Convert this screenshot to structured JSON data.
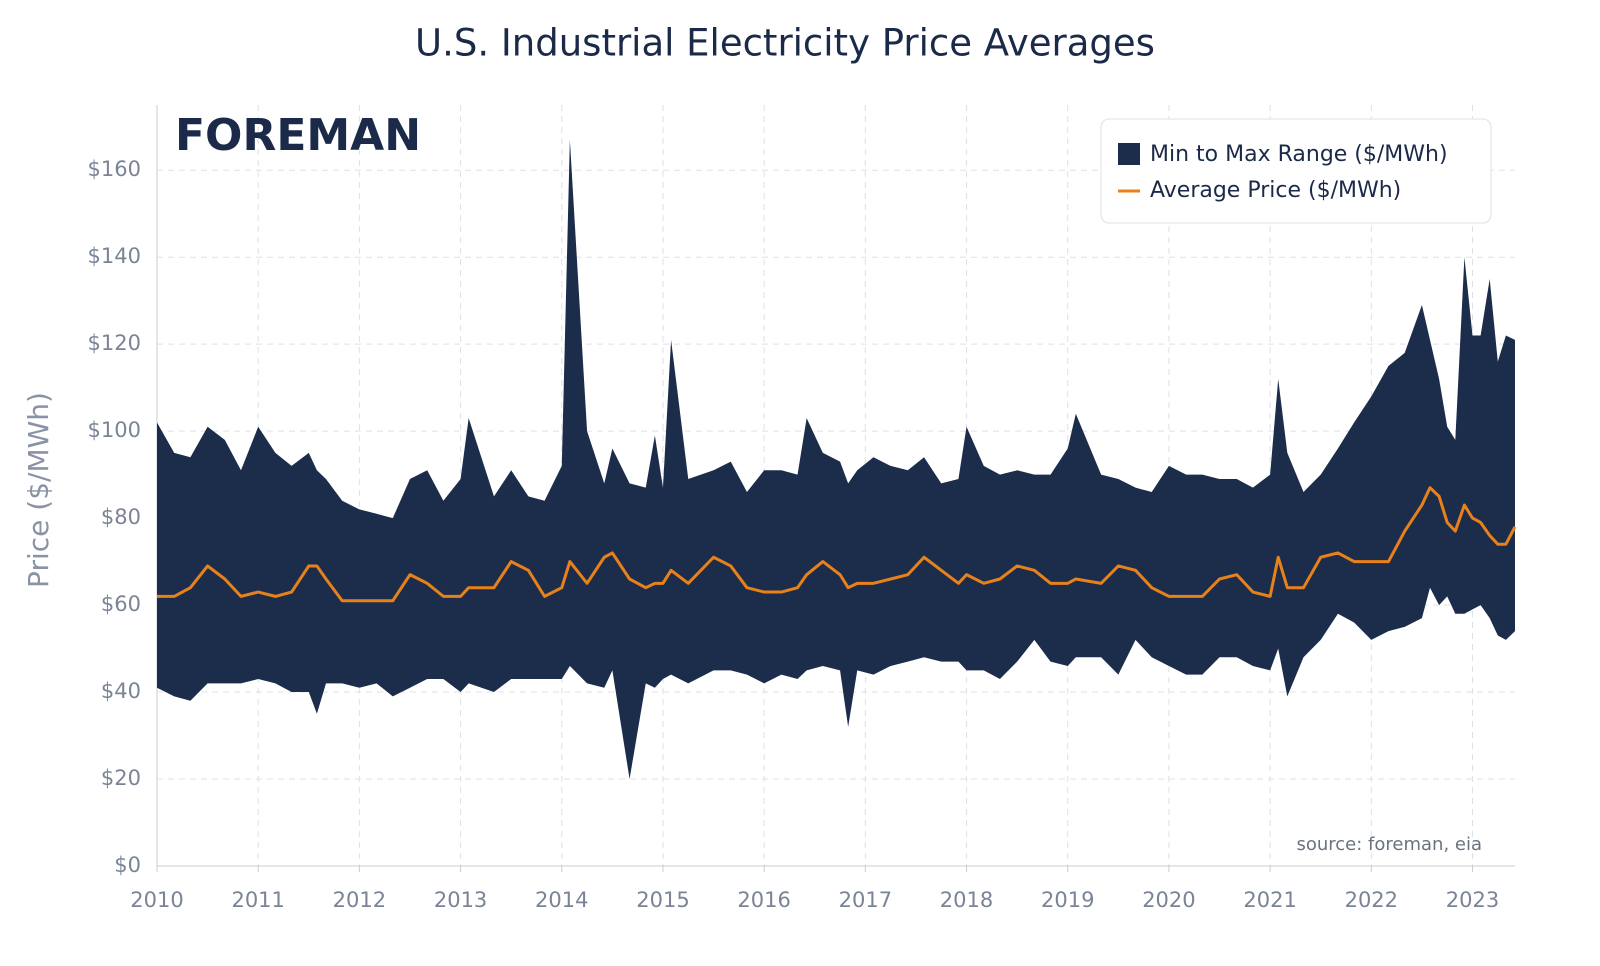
{
  "chart_data": {
    "type": "range-line",
    "title": "U.S. Industrial Electricity Price Averages",
    "brand": "FOREMAN",
    "source": "source: foreman, eia",
    "y_label": "Price ($/MWh)",
    "x": [
      2010.0,
      2010.17,
      2010.33,
      2010.5,
      2010.67,
      2010.83,
      2011.0,
      2011.17,
      2011.33,
      2011.5,
      2011.58,
      2011.67,
      2011.83,
      2012.0,
      2012.17,
      2012.33,
      2012.5,
      2012.67,
      2012.83,
      2013.0,
      2013.08,
      2013.33,
      2013.5,
      2013.67,
      2013.83,
      2014.0,
      2014.08,
      2014.25,
      2014.42,
      2014.5,
      2014.67,
      2014.83,
      2014.92,
      2015.0,
      2015.08,
      2015.25,
      2015.5,
      2015.67,
      2015.83,
      2016.0,
      2016.17,
      2016.33,
      2016.42,
      2016.58,
      2016.75,
      2016.83,
      2016.92,
      2017.08,
      2017.25,
      2017.42,
      2017.58,
      2017.75,
      2017.92,
      2018.0,
      2018.17,
      2018.33,
      2018.5,
      2018.67,
      2018.83,
      2019.0,
      2019.08,
      2019.33,
      2019.5,
      2019.67,
      2019.83,
      2020.0,
      2020.17,
      2020.33,
      2020.5,
      2020.67,
      2020.83,
      2021.0,
      2021.08,
      2021.17,
      2021.33,
      2021.5,
      2021.67,
      2021.83,
      2022.0,
      2022.17,
      2022.33,
      2022.5,
      2022.58,
      2022.67,
      2022.75,
      2022.83,
      2022.92,
      2023.0,
      2023.08,
      2023.17,
      2023.25,
      2023.33,
      2023.42
    ],
    "series": [
      {
        "name": "Min to Max Range ($/MWh)",
        "color": "#1b2d4b",
        "high": [
          102,
          95,
          94,
          101,
          98,
          91,
          101,
          95,
          92,
          95,
          91,
          89,
          84,
          82,
          81,
          80,
          89,
          91,
          84,
          89,
          103,
          85,
          91,
          85,
          84,
          92,
          167,
          100,
          88,
          96,
          88,
          87,
          99,
          87,
          121,
          89,
          91,
          93,
          86,
          91,
          91,
          90,
          103,
          95,
          93,
          88,
          91,
          94,
          92,
          91,
          94,
          88,
          89,
          101,
          92,
          90,
          91,
          90,
          90,
          96,
          104,
          90,
          89,
          87,
          86,
          92,
          90,
          90,
          89,
          89,
          87,
          90,
          112,
          95,
          86,
          90,
          96,
          102,
          108,
          115,
          118,
          129,
          121,
          112,
          101,
          98,
          140,
          122,
          122,
          135,
          116,
          122,
          121
        ],
        "low": [
          41,
          39,
          38,
          42,
          42,
          42,
          43,
          42,
          40,
          40,
          35,
          42,
          42,
          41,
          42,
          39,
          41,
          43,
          43,
          40,
          42,
          40,
          43,
          43,
          43,
          43,
          46,
          42,
          41,
          45,
          20,
          42,
          41,
          43,
          44,
          42,
          45,
          45,
          44,
          42,
          44,
          43,
          45,
          46,
          45,
          32,
          45,
          44,
          46,
          47,
          48,
          47,
          47,
          45,
          45,
          43,
          47,
          52,
          47,
          46,
          48,
          48,
          44,
          52,
          48,
          46,
          44,
          44,
          48,
          48,
          46,
          45,
          50,
          39,
          48,
          52,
          58,
          56,
          52,
          54,
          55,
          57,
          64,
          60,
          62,
          58,
          58,
          59,
          60,
          57,
          53,
          52,
          54
        ]
      },
      {
        "name": "Average Price ($/MWh)",
        "color": "#e8811a",
        "values": [
          62,
          62,
          64,
          69,
          66,
          62,
          63,
          62,
          63,
          69,
          69,
          66,
          61,
          61,
          61,
          61,
          67,
          65,
          62,
          62,
          64,
          64,
          70,
          68,
          62,
          64,
          70,
          65,
          71,
          72,
          66,
          64,
          65,
          65,
          68,
          65,
          71,
          69,
          64,
          63,
          63,
          64,
          67,
          70,
          67,
          64,
          65,
          65,
          66,
          67,
          71,
          68,
          65,
          67,
          65,
          66,
          69,
          68,
          65,
          65,
          66,
          65,
          69,
          68,
          64,
          62,
          62,
          62,
          66,
          67,
          63,
          62,
          71,
          64,
          64,
          71,
          72,
          70,
          70,
          70,
          77,
          83,
          87,
          85,
          79,
          77,
          83,
          80,
          79,
          76,
          74,
          74,
          78
        ]
      }
    ],
    "xlim": [
      2010,
      2023.42
    ],
    "xticks": [
      2010,
      2011,
      2012,
      2013,
      2014,
      2015,
      2016,
      2017,
      2018,
      2019,
      2020,
      2021,
      2022,
      2023
    ],
    "ylim": [
      0,
      175
    ],
    "yticks": [
      {
        "value": 0,
        "label": "$0"
      },
      {
        "value": 20,
        "label": "$20"
      },
      {
        "value": 40,
        "label": "$40"
      },
      {
        "value": 60,
        "label": "$60"
      },
      {
        "value": 80,
        "label": "$80"
      },
      {
        "value": 100,
        "label": "$100"
      },
      {
        "value": 120,
        "label": "$120"
      },
      {
        "value": 140,
        "label": "$140"
      },
      {
        "value": 160,
        "label": "$160"
      }
    ],
    "grid": true,
    "legend": "upper right"
  }
}
